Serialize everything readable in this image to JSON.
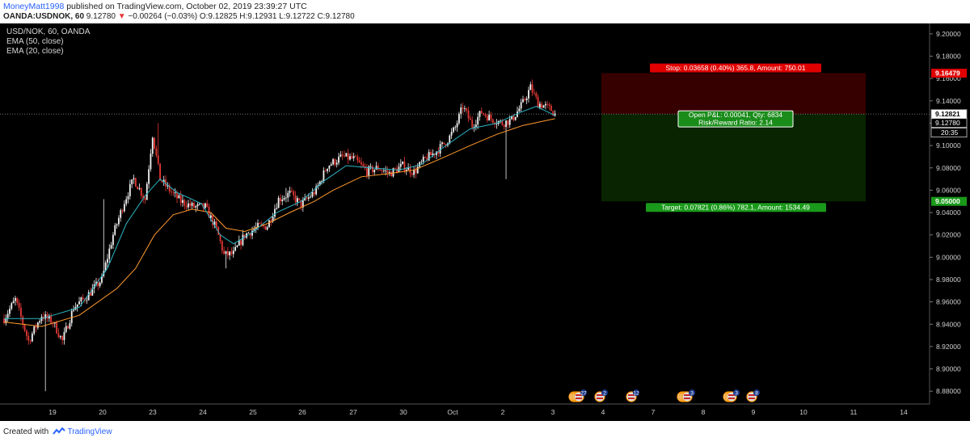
{
  "header": {
    "author": "MoneyMatt1998",
    "published": " published on TradingView.com, October 02, 2019 23:39:27 UTC",
    "symbol": "OANDA:USDNOK, 60",
    "last": "9.12780",
    "arrow": "▼",
    "change": "−0.00264 (−0.03%)",
    "ohlc": "O:9.12825 H:9.12931 L:9.12722 C:9.12780"
  },
  "legend": {
    "title": "USD/NOK, 60, OANDA",
    "ema50": "EMA (50, close)",
    "ema20": "EMA (20, close)"
  },
  "footer": {
    "created": "Created with",
    "brand": "TradingView"
  },
  "colors": {
    "up": "#f2f2f2",
    "down": "#e53935",
    "ema50": "#ff9a2e",
    "ema20": "#2bb5c5",
    "stop_zone": "#3a0000",
    "target_zone": "#0a2600",
    "stop_label": "#e00000",
    "target_label": "#1a9a1a"
  },
  "chart_data": {
    "type": "candlestick",
    "symbol": "USD/NOK",
    "interval": "60",
    "ylim": [
      8.87,
      9.205
    ],
    "y_ticks": [
      "9.20000",
      "9.18000",
      "9.16000",
      "9.14000",
      "9.12000",
      "9.10000",
      "9.08000",
      "9.06000",
      "9.04000",
      "9.02000",
      "9.00000",
      "8.98000",
      "8.96000",
      "8.94000",
      "8.92000",
      "8.90000",
      "8.88000"
    ],
    "x_ticks": [
      "19",
      "20",
      "23",
      "24",
      "25",
      "26",
      "27",
      "30",
      "Oct",
      "2",
      "3",
      "4",
      "7",
      "8",
      "9",
      "10",
      "11",
      "14"
    ],
    "last_price": "9.12780",
    "current_price": "9.12821",
    "countdown": "20:35",
    "price_anchors": [
      [
        0,
        8.945
      ],
      [
        6,
        8.962
      ],
      [
        13,
        8.925
      ],
      [
        20,
        8.948
      ],
      [
        26,
        8.942
      ],
      [
        31,
        8.925
      ],
      [
        37,
        8.955
      ],
      [
        44,
        8.965
      ],
      [
        52,
        8.98
      ],
      [
        58,
        9.02
      ],
      [
        64,
        9.05
      ],
      [
        69,
        9.07
      ],
      [
        75,
        9.052
      ],
      [
        79,
        9.11
      ],
      [
        83,
        9.07
      ],
      [
        88,
        9.06
      ],
      [
        94,
        9.05
      ],
      [
        101,
        9.045
      ],
      [
        107,
        9.045
      ],
      [
        113,
        9.025
      ],
      [
        117,
        9.002
      ],
      [
        122,
        9.003
      ],
      [
        128,
        9.02
      ],
      [
        135,
        9.027
      ],
      [
        140,
        9.028
      ],
      [
        146,
        9.052
      ],
      [
        152,
        9.057
      ],
      [
        158,
        9.047
      ],
      [
        166,
        9.06
      ],
      [
        172,
        9.082
      ],
      [
        180,
        9.09
      ],
      [
        186,
        9.088
      ],
      [
        193,
        9.077
      ],
      [
        199,
        9.08
      ],
      [
        205,
        9.075
      ],
      [
        212,
        9.082
      ],
      [
        218,
        9.076
      ],
      [
        224,
        9.088
      ],
      [
        230,
        9.095
      ],
      [
        236,
        9.105
      ],
      [
        240,
        9.116
      ],
      [
        244,
        9.135
      ],
      [
        249,
        9.118
      ],
      [
        254,
        9.13
      ],
      [
        259,
        9.124
      ],
      [
        265,
        9.12
      ],
      [
        270,
        9.123
      ],
      [
        276,
        9.138
      ],
      [
        280,
        9.152
      ],
      [
        284,
        9.138
      ],
      [
        288,
        9.135
      ],
      [
        291,
        9.132
      ],
      [
        293,
        9.128
      ]
    ],
    "spikes": [
      [
        82,
        "high",
        9.12
      ],
      [
        53,
        "high",
        9.052
      ],
      [
        22,
        "low",
        8.88
      ],
      [
        118,
        "low",
        8.99
      ],
      [
        150,
        "high",
        9.062
      ],
      [
        267,
        "low",
        9.07
      ]
    ],
    "emas": [
      {
        "name": "EMA (50, close)",
        "points": [
          [
            0,
            8.942
          ],
          [
            20,
            8.938
          ],
          [
            40,
            8.948
          ],
          [
            60,
            8.972
          ],
          [
            70,
            8.99
          ],
          [
            80,
            9.02
          ],
          [
            90,
            9.038
          ],
          [
            100,
            9.043
          ],
          [
            110,
            9.04
          ],
          [
            118,
            9.026
          ],
          [
            128,
            9.023
          ],
          [
            140,
            9.03
          ],
          [
            152,
            9.04
          ],
          [
            165,
            9.05
          ],
          [
            175,
            9.06
          ],
          [
            190,
            9.072
          ],
          [
            205,
            9.075
          ],
          [
            218,
            9.078
          ],
          [
            232,
            9.088
          ],
          [
            248,
            9.1
          ],
          [
            262,
            9.11
          ],
          [
            276,
            9.118
          ],
          [
            293,
            9.124
          ]
        ]
      },
      {
        "name": "EMA (20, close)",
        "points": [
          [
            0,
            8.945
          ],
          [
            20,
            8.945
          ],
          [
            40,
            8.955
          ],
          [
            55,
            8.99
          ],
          [
            65,
            9.03
          ],
          [
            75,
            9.055
          ],
          [
            83,
            9.07
          ],
          [
            92,
            9.058
          ],
          [
            105,
            9.048
          ],
          [
            115,
            9.02
          ],
          [
            122,
            9.012
          ],
          [
            132,
            9.022
          ],
          [
            145,
            9.04
          ],
          [
            158,
            9.05
          ],
          [
            170,
            9.068
          ],
          [
            182,
            9.082
          ],
          [
            195,
            9.08
          ],
          [
            210,
            9.078
          ],
          [
            222,
            9.083
          ],
          [
            235,
            9.1
          ],
          [
            248,
            9.115
          ],
          [
            262,
            9.12
          ],
          [
            275,
            9.13
          ],
          [
            283,
            9.135
          ],
          [
            293,
            9.127
          ]
        ]
      }
    ],
    "position": {
      "type": "long",
      "entry": 9.12821,
      "stop": 9.16479,
      "target": 9.05,
      "stop_price_label": "9.16479",
      "target_price_label": "9.05000",
      "stop_text": "Stop: 0.03658 (0.40%) 365.8, Amount: 750.01",
      "target_text": "Target: 0.07821 (0.86%) 782.1, Amount: 1534.49",
      "pnl_text": "Open P&L: 0.00041, Qty: 6834",
      "rr_text": "Risk/Reward Ratio: 2.14"
    },
    "events": [
      {
        "label": "27"
      },
      {
        "label": "2"
      },
      {
        "label": "12"
      },
      {
        "label": "3"
      },
      {
        "label": "3"
      },
      {
        "label": "8"
      }
    ]
  }
}
